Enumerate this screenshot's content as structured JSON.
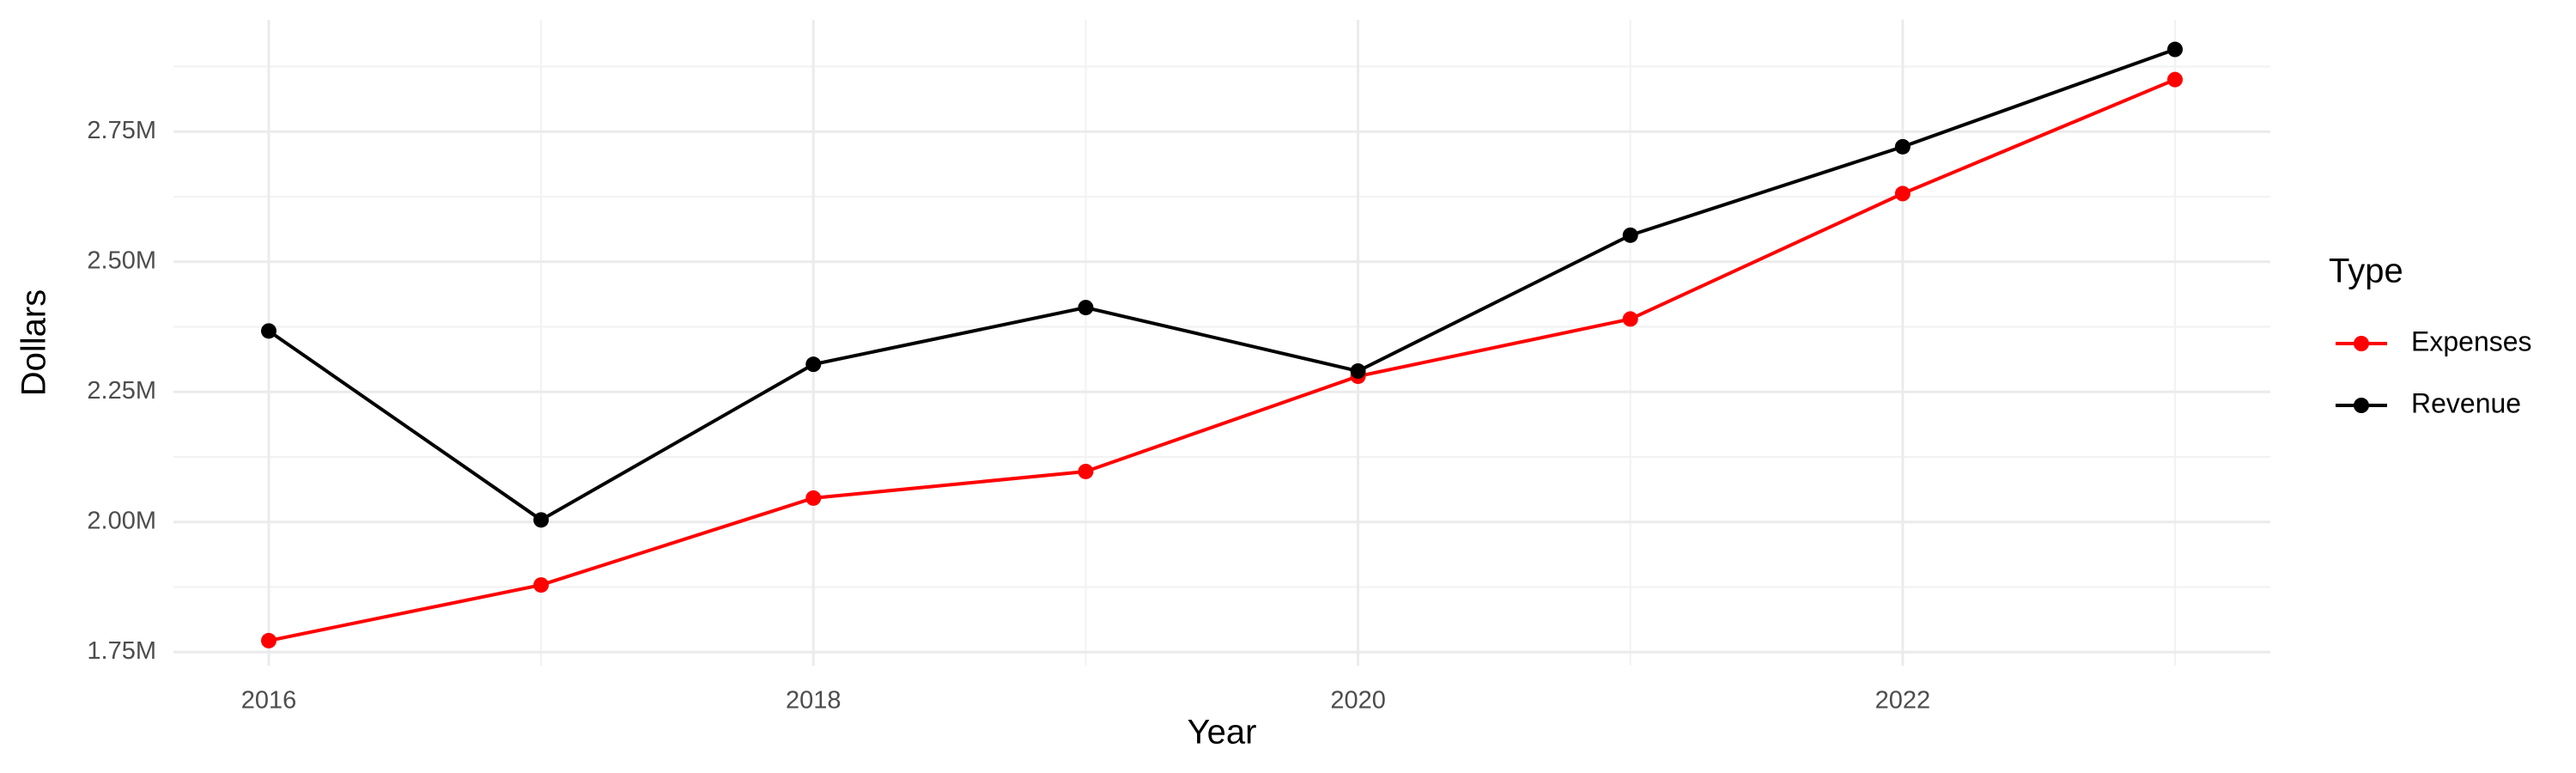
{
  "chart_data": {
    "type": "line",
    "x_label": "Year",
    "y_label": "Dollars",
    "x": [
      2016,
      2017,
      2018,
      2019,
      2020,
      2021,
      2022,
      2023
    ],
    "series": [
      {
        "name": "Expenses",
        "color": "#ff0000",
        "values": [
          1772000,
          1879000,
          2046000,
          2097000,
          2280000,
          2390000,
          2631000,
          2850000
        ]
      },
      {
        "name": "Revenue",
        "color": "#000000",
        "values": [
          2367000,
          2004000,
          2303000,
          2412000,
          2290000,
          2551000,
          2721000,
          2908000
        ]
      }
    ],
    "legend_title": "Type",
    "legend_position": "right",
    "xlim": [
      2015.65,
      2023.35
    ],
    "ylim": [
      1724000,
      2965000
    ],
    "xticks": [
      2016,
      2018,
      2020,
      2022
    ],
    "minor_xticks": [
      2017,
      2019,
      2021,
      2023
    ],
    "yticks": [
      {
        "value": 1750000,
        "label": "1.75M"
      },
      {
        "value": 2000000,
        "label": "2.00M"
      },
      {
        "value": 2250000,
        "label": "2.25M"
      },
      {
        "value": 2500000,
        "label": "2.50M"
      },
      {
        "value": 2750000,
        "label": "2.75M"
      }
    ],
    "minor_yticks": [
      1875000,
      2125000,
      2375000,
      2625000,
      2875000
    ],
    "grid": true
  }
}
